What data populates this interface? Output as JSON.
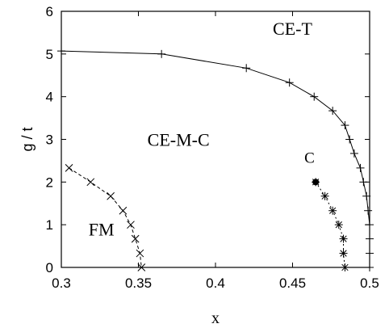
{
  "chart_data": {
    "type": "scatter",
    "xlabel": "x",
    "ylabel": "g / t",
    "xlim": [
      0.3,
      0.5
    ],
    "ylim": [
      0,
      6
    ],
    "xticks": [
      "0.3",
      "0.35",
      "0.4",
      "0.45",
      "0.5"
    ],
    "yticks": [
      "0",
      "1",
      "2",
      "3",
      "4",
      "5",
      "6"
    ],
    "grid": false,
    "series": [
      {
        "line": "solid",
        "marker": "plus",
        "points": [
          [
            0.3,
            5.07
          ],
          [
            0.365,
            5.0
          ],
          [
            0.42,
            4.67
          ],
          [
            0.448,
            4.33
          ],
          [
            0.464,
            4.0
          ],
          [
            0.476,
            3.67
          ],
          [
            0.484,
            3.33
          ],
          [
            0.487,
            3.0
          ],
          [
            0.49,
            2.67
          ],
          [
            0.494,
            2.33
          ],
          [
            0.496,
            2.0
          ],
          [
            0.498,
            1.67
          ],
          [
            0.499,
            1.33
          ],
          [
            0.5,
            1.0
          ],
          [
            0.5,
            0.67
          ],
          [
            0.5,
            0.33
          ],
          [
            0.5,
            0.0
          ]
        ]
      },
      {
        "line": "dashed",
        "marker": "x",
        "points": [
          [
            0.305,
            2.33
          ],
          [
            0.319,
            2.0
          ],
          [
            0.332,
            1.67
          ],
          [
            0.34,
            1.33
          ],
          [
            0.345,
            1.0
          ],
          [
            0.348,
            0.67
          ],
          [
            0.351,
            0.33
          ],
          [
            0.352,
            0.0
          ]
        ]
      },
      {
        "line": "dotted",
        "marker": "asterisk",
        "points": [
          [
            0.465,
            2.0
          ],
          [
            0.471,
            1.67
          ],
          [
            0.476,
            1.33
          ],
          [
            0.48,
            1.0
          ],
          [
            0.483,
            0.67
          ],
          [
            0.483,
            0.33
          ],
          [
            0.484,
            0.0
          ]
        ]
      }
    ],
    "filled_point": [
      0.465,
      2.0
    ],
    "annotations": [
      {
        "text": "CE-T",
        "x": 0.45,
        "y": 5.45
      },
      {
        "text": "CE-M-C",
        "x": 0.376,
        "y": 2.85
      },
      {
        "text": "C",
        "x": 0.461,
        "y": 2.45
      },
      {
        "text": "FM",
        "x": 0.326,
        "y": 0.75
      }
    ]
  }
}
